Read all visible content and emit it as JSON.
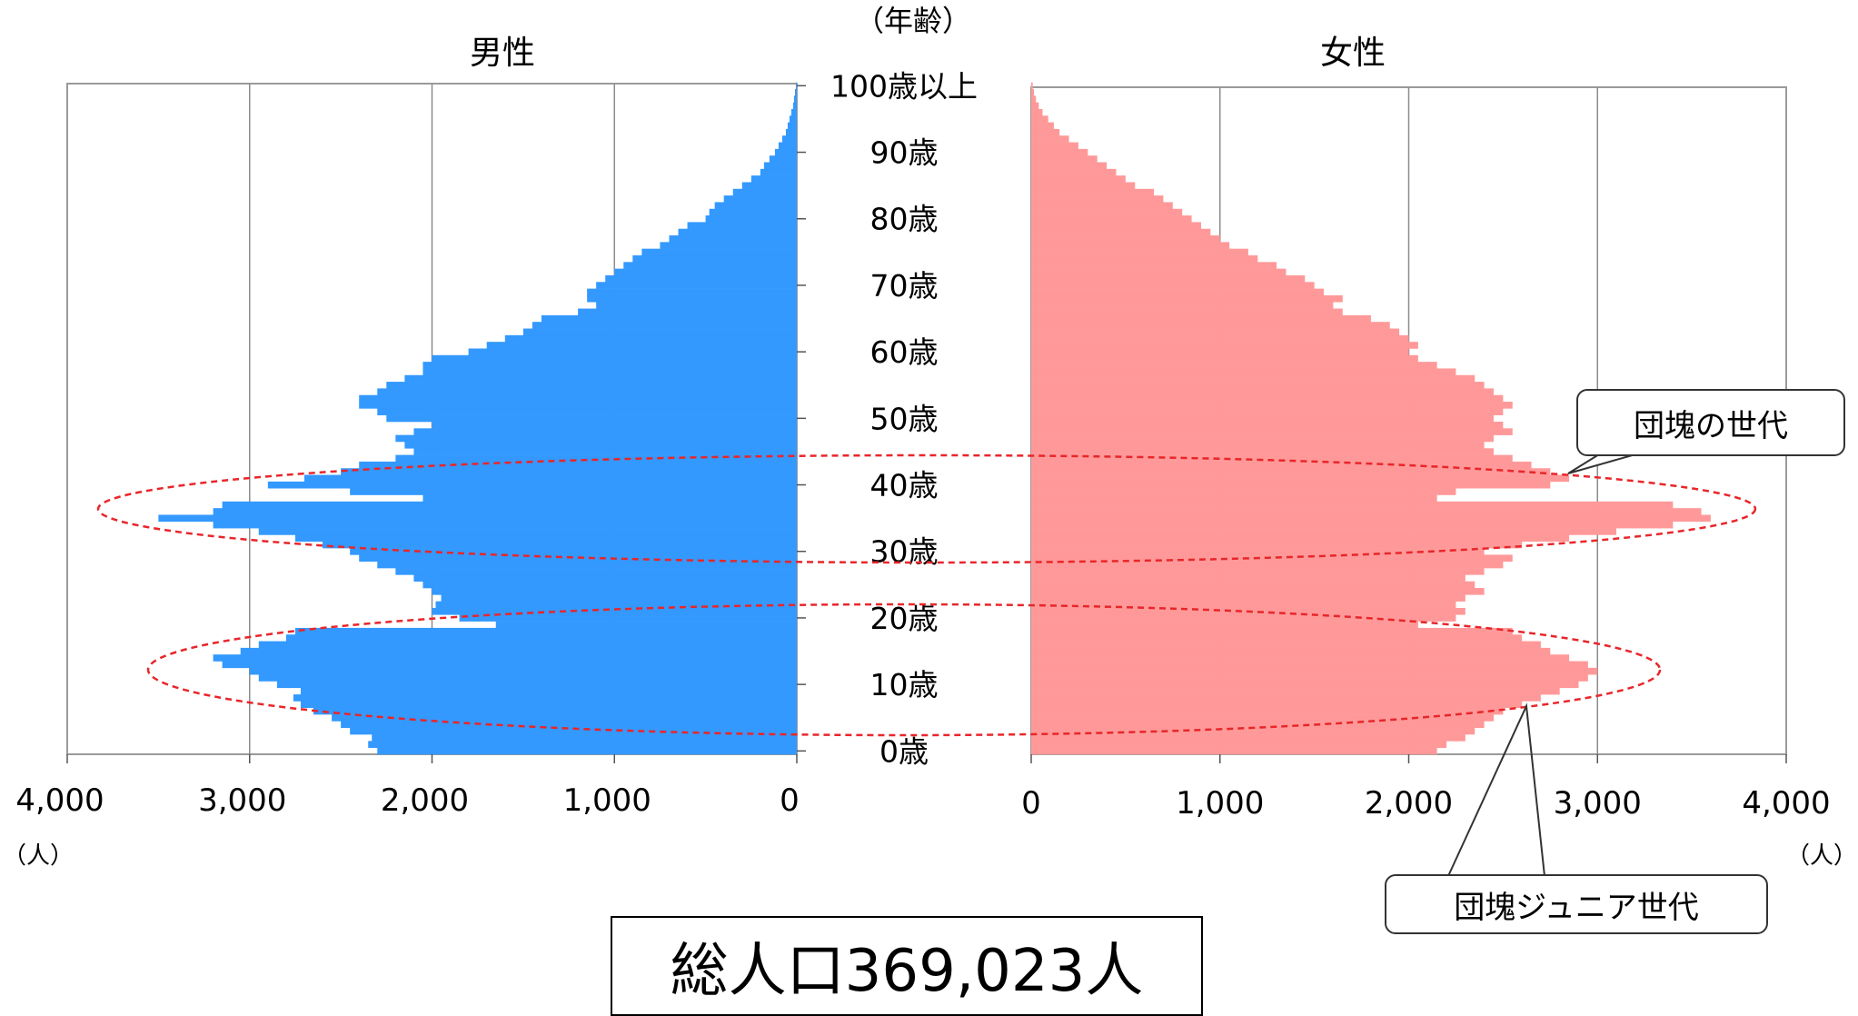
{
  "chart_data": {
    "type": "bar",
    "subtype": "population-pyramid",
    "age_axis_title": "（年齢）",
    "male_title": "男性",
    "female_title": "女性",
    "unit_label": "（人）",
    "male_x_ticks": [
      "4,000",
      "3,000",
      "2,000",
      "1,000",
      "0"
    ],
    "female_x_ticks": [
      "0",
      "1,000",
      "2,000",
      "3,000",
      "4,000"
    ],
    "xlim": [
      0,
      4000
    ],
    "age_tick_labels": [
      {
        "age": 100,
        "label": "100歳以上"
      },
      {
        "age": 90,
        "label": "90歳"
      },
      {
        "age": 80,
        "label": "80歳"
      },
      {
        "age": 70,
        "label": "70歳"
      },
      {
        "age": 60,
        "label": "60歳"
      },
      {
        "age": 50,
        "label": "50歳"
      },
      {
        "age": 40,
        "label": "40歳"
      },
      {
        "age": 30,
        "label": "30歳"
      },
      {
        "age": 20,
        "label": "20歳"
      },
      {
        "age": 10,
        "label": "10歳"
      },
      {
        "age": 0,
        "label": "0歳"
      }
    ],
    "ages": [
      0,
      1,
      2,
      3,
      4,
      5,
      6,
      7,
      8,
      9,
      10,
      11,
      12,
      13,
      14,
      15,
      16,
      17,
      18,
      19,
      20,
      21,
      22,
      23,
      24,
      25,
      26,
      27,
      28,
      29,
      30,
      31,
      32,
      33,
      34,
      35,
      36,
      37,
      38,
      39,
      40,
      41,
      42,
      43,
      44,
      45,
      46,
      47,
      48,
      49,
      50,
      51,
      52,
      53,
      54,
      55,
      56,
      57,
      58,
      59,
      60,
      61,
      62,
      63,
      64,
      65,
      66,
      67,
      68,
      69,
      70,
      71,
      72,
      73,
      74,
      75,
      76,
      77,
      78,
      79,
      80,
      81,
      82,
      83,
      84,
      85,
      86,
      87,
      88,
      89,
      90,
      91,
      92,
      93,
      94,
      95,
      96,
      97,
      98,
      99,
      100
    ],
    "male": [
      2300,
      2350,
      2330,
      2450,
      2500,
      2550,
      2650,
      2720,
      2760,
      2720,
      2850,
      2950,
      3000,
      3150,
      3200,
      3050,
      2950,
      2800,
      2750,
      1650,
      1850,
      2000,
      1980,
      1950,
      2000,
      2050,
      2100,
      2200,
      2300,
      2400,
      2450,
      2600,
      2750,
      2950,
      3200,
      3500,
      3200,
      3150,
      2050,
      2450,
      2900,
      2700,
      2500,
      2400,
      2200,
      2100,
      2150,
      2200,
      2100,
      2000,
      2250,
      2300,
      2400,
      2400,
      2300,
      2250,
      2150,
      2050,
      2050,
      2000,
      1800,
      1700,
      1600,
      1500,
      1450,
      1400,
      1200,
      1100,
      1150,
      1150,
      1100,
      1050,
      1000,
      950,
      900,
      850,
      750,
      700,
      650,
      600,
      500,
      480,
      450,
      400,
      350,
      300,
      250,
      200,
      180,
      150,
      120,
      100,
      80,
      60,
      50,
      40,
      30,
      20,
      15,
      10,
      5
    ],
    "female": [
      2150,
      2200,
      2300,
      2350,
      2400,
      2450,
      2500,
      2600,
      2700,
      2800,
      2900,
      2950,
      3000,
      2950,
      2850,
      2750,
      2700,
      2600,
      2550,
      2050,
      2250,
      2300,
      2250,
      2300,
      2400,
      2350,
      2300,
      2400,
      2500,
      2550,
      2400,
      2600,
      2850,
      3100,
      3400,
      3600,
      3550,
      3400,
      2150,
      2250,
      2750,
      2850,
      2750,
      2650,
      2550,
      2450,
      2400,
      2450,
      2550,
      2500,
      2450,
      2500,
      2550,
      2500,
      2450,
      2400,
      2350,
      2250,
      2150,
      2050,
      2000,
      2050,
      2000,
      1950,
      1900,
      1800,
      1650,
      1600,
      1650,
      1550,
      1500,
      1450,
      1350,
      1300,
      1200,
      1150,
      1050,
      1000,
      950,
      900,
      850,
      800,
      750,
      700,
      650,
      550,
      500,
      450,
      400,
      350,
      300,
      250,
      200,
      150,
      120,
      90,
      60,
      40,
      25,
      15,
      8
    ],
    "male_color": "#3399ff",
    "female_color": "#ff9999",
    "highlight_color": "#e8262a",
    "annotations": {
      "dankai": "団塊の世代",
      "dankai_junior": "団塊ジュニア世代"
    },
    "total": "総人口369,023人"
  }
}
